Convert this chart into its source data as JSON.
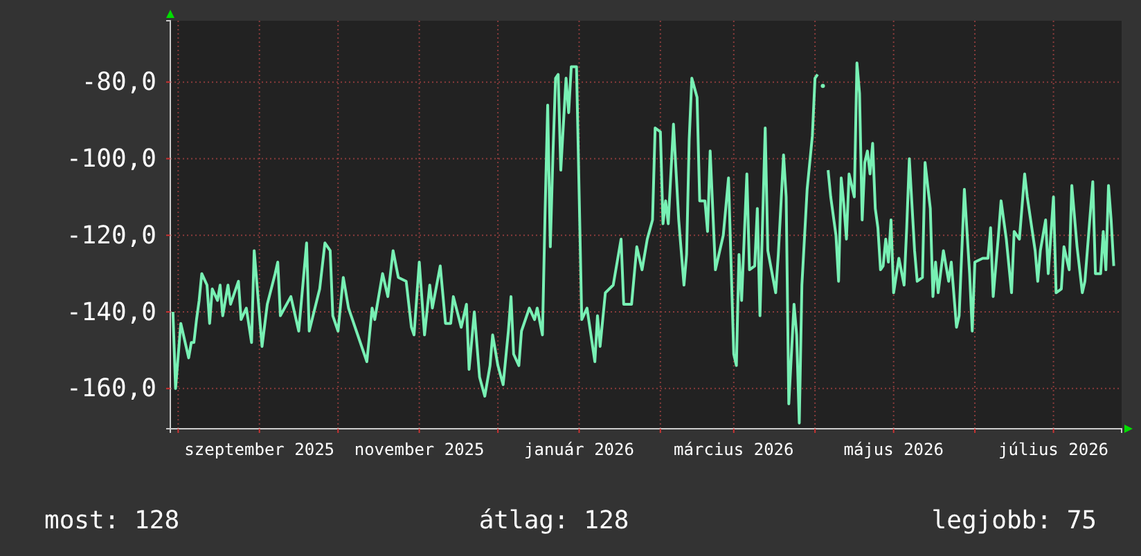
{
  "chart_data": {
    "type": "line",
    "x": [
      "2025-07-30",
      "2025-07-31",
      "2025-08-02",
      "2025-08-03",
      "2025-08-05",
      "2025-08-06",
      "2025-08-07",
      "2025-08-08",
      "2025-08-09",
      "2025-08-10",
      "2025-08-12",
      "2025-08-13",
      "2025-08-14",
      "2025-08-16",
      "2025-08-17",
      "2025-08-18",
      "2025-08-20",
      "2025-08-21",
      "2025-08-24",
      "2025-08-25",
      "2025-08-27",
      "2025-08-29",
      "2025-08-30",
      "2025-09-02",
      "2025-09-04",
      "2025-09-07",
      "2025-09-08",
      "2025-09-09",
      "2025-09-13",
      "2025-09-16",
      "2025-09-19",
      "2025-09-20",
      "2025-09-24",
      "2025-09-26",
      "2025-09-28",
      "2025-09-29",
      "2025-10-01",
      "2025-10-03",
      "2025-10-05",
      "2025-10-08",
      "2025-10-12",
      "2025-10-14",
      "2025-10-15",
      "2025-10-18",
      "2025-10-20",
      "2025-10-22",
      "2025-10-24",
      "2025-10-27",
      "2025-10-29",
      "2025-10-30",
      "2025-11-01",
      "2025-11-03",
      "2025-11-05",
      "2025-11-06",
      "2025-11-09",
      "2025-11-11",
      "2025-11-13",
      "2025-11-14",
      "2025-11-17",
      "2025-11-19",
      "2025-11-20",
      "2025-11-22",
      "2025-11-24",
      "2025-11-26",
      "2025-11-28",
      "2025-11-29",
      "2025-12-01",
      "2025-12-03",
      "2025-12-05",
      "2025-12-06",
      "2025-12-07",
      "2025-12-09",
      "2025-12-10",
      "2025-12-13",
      "2025-12-15",
      "2025-12-16",
      "2025-12-18",
      "2025-12-19",
      "2025-12-20",
      "2025-12-21",
      "2025-12-22",
      "2025-12-23",
      "2025-12-24",
      "2025-12-25",
      "2025-12-27",
      "2025-12-28",
      "2025-12-29",
      "2025-12-31",
      "2026-01-02",
      "2026-01-04",
      "2026-01-07",
      "2026-01-08",
      "2026-01-09",
      "2026-01-11",
      "2026-01-14",
      "2026-01-17",
      "2026-01-18",
      "2026-01-21",
      "2026-01-23",
      "2026-01-25",
      "2026-01-27",
      "2026-01-29",
      "2026-01-30",
      "2026-02-01",
      "2026-02-02",
      "2026-02-03",
      "2026-02-04",
      "2026-02-06",
      "2026-02-08",
      "2026-02-10",
      "2026-02-11",
      "2026-02-12",
      "2026-02-13",
      "2026-02-15",
      "2026-02-16",
      "2026-02-18",
      "2026-02-19",
      "2026-02-20",
      "2026-02-22",
      "2026-02-23",
      "2026-02-25",
      "2026-02-27",
      "2026-03-01",
      "2026-03-02",
      "2026-03-03",
      "2026-03-04",
      "2026-03-06",
      "2026-03-07",
      "2026-03-09",
      "2026-03-10",
      "2026-03-11",
      "2026-03-13",
      "2026-03-14",
      "2026-03-17",
      "2026-03-18",
      "2026-03-20",
      "2026-03-21",
      "2026-03-22",
      "2026-03-24",
      "2026-03-25",
      "2026-03-26",
      "2026-03-27",
      "2026-03-29",
      "2026-03-31",
      "2026-04-01",
      "2026-04-02",
      "2026-04-03",
      "2026-04-04",
      "2026-04-05",
      "2026-04-06",
      "2026-04-07",
      "2026-04-09",
      "2026-04-10",
      "2026-04-11",
      "2026-04-12",
      "2026-04-13",
      "2026-04-14",
      "2026-04-16",
      "2026-04-17",
      "2026-04-18",
      "2026-04-19",
      "2026-04-20",
      "2026-04-21",
      "2026-04-22",
      "2026-04-23",
      "2026-04-24",
      "2026-04-25",
      "2026-04-26",
      "2026-04-27",
      "2026-04-28",
      "2026-04-29",
      "2026-04-30",
      "2026-05-01",
      "2026-05-03",
      "2026-05-05",
      "2026-05-06",
      "2026-05-07",
      "2026-05-09",
      "2026-05-10",
      "2026-05-12",
      "2026-05-13",
      "2026-05-15",
      "2026-05-16",
      "2026-05-17",
      "2026-05-18",
      "2026-05-20",
      "2026-05-22",
      "2026-05-23",
      "2026-05-25",
      "2026-05-26",
      "2026-05-28",
      "2026-05-30",
      "2026-05-31",
      "2026-06-01",
      "2026-06-04",
      "2026-06-06",
      "2026-06-07",
      "2026-06-08",
      "2026-06-10",
      "2026-06-11",
      "2026-06-13",
      "2026-06-15",
      "2026-06-16",
      "2026-06-18",
      "2026-06-20",
      "2026-06-21",
      "2026-06-24",
      "2026-06-25",
      "2026-06-26",
      "2026-06-28",
      "2026-06-29",
      "2026-07-01",
      "2026-07-02",
      "2026-07-04",
      "2026-07-05",
      "2026-07-07",
      "2026-07-08",
      "2026-07-10",
      "2026-07-12",
      "2026-07-13",
      "2026-07-16",
      "2026-07-17",
      "2026-07-19",
      "2026-07-20",
      "2026-07-21",
      "2026-07-22",
      "2026-07-23",
      "2026-07-24"
    ],
    "series": [
      {
        "color": "#78f0b4",
        "values": [
          -140,
          -160,
          -143,
          -146,
          -152,
          -148,
          -148,
          -142,
          -137,
          -130,
          -133,
          -143,
          -134,
          -137,
          -133,
          -141,
          -133,
          -138,
          -132,
          -142,
          -139,
          -148,
          -124,
          -149,
          -138,
          -130,
          -127,
          -141,
          -136,
          -145,
          -122,
          -145,
          -134,
          -122,
          -124,
          -141,
          -145,
          -131,
          -139,
          -145,
          -153,
          -139,
          -142,
          -130,
          -136,
          -124,
          -131,
          -132,
          -144,
          -146,
          -127,
          -146,
          -133,
          -139,
          -128,
          -143,
          -143,
          -136,
          -144,
          -138,
          -155,
          -140,
          -157,
          -162,
          -154,
          -146,
          -154,
          -159,
          -145,
          -136,
          -151,
          -154,
          -145,
          -139,
          -142,
          -139,
          -146,
          -114,
          -86,
          -123,
          -99,
          -79,
          -78,
          -103,
          -79,
          -88,
          -76,
          -76,
          -142,
          -139,
          -153,
          -141,
          -149,
          -135,
          -133,
          -121,
          -138,
          -138,
          -123,
          -129,
          -121,
          -116,
          -92,
          -93,
          -117,
          -111,
          -117,
          -91,
          -116,
          -133,
          -125,
          -95,
          -79,
          -84,
          -111,
          -111,
          -119,
          -98,
          -129,
          -126,
          -120,
          -105,
          -151,
          -154,
          -125,
          -137,
          -104,
          -129,
          -128,
          -113,
          -141,
          -92,
          -124,
          -135,
          -125,
          -99,
          -110,
          -164,
          -138,
          -146,
          -169,
          -133,
          -108,
          -94,
          -79,
          -78,
          null,
          -81,
          null,
          -103,
          -110,
          -120,
          -132,
          -105,
          -112,
          -121,
          -104,
          -110,
          -75,
          -83,
          -116,
          -101,
          -98,
          -104,
          -96,
          -113,
          -118,
          -129,
          -128,
          -121,
          -127,
          -116,
          -135,
          -126,
          -133,
          -118,
          -100,
          -124,
          -132,
          -131,
          -101,
          -113,
          -136,
          -127,
          -135,
          -124,
          -132,
          -127,
          -144,
          -141,
          -108,
          -130,
          -145,
          -127,
          -126,
          -126,
          -118,
          -136,
          -120,
          -111,
          -121,
          -135,
          -119,
          -121,
          -104,
          -110,
          -124,
          -132,
          -124,
          -116,
          -130,
          -110,
          -135,
          -134,
          -123,
          -129,
          -107,
          -123,
          -135,
          -132,
          -106,
          -130,
          -130,
          -119,
          -129,
          -107,
          -116,
          -128
        ]
      }
    ],
    "xlim": [
      "2025-07-29",
      "2026-07-27"
    ],
    "xticks": [
      {
        "value": "2025-08-01",
        "label": null
      },
      {
        "value": "2025-09-01",
        "label": "szeptember 2025"
      },
      {
        "value": "2025-10-01",
        "label": null
      },
      {
        "value": "2025-11-01",
        "label": "november 2025"
      },
      {
        "value": "2025-12-01",
        "label": null
      },
      {
        "value": "2026-01-01",
        "label": "január 2026"
      },
      {
        "value": "2026-02-01",
        "label": null
      },
      {
        "value": "2026-03-01",
        "label": "március 2026"
      },
      {
        "value": "2026-04-01",
        "label": null
      },
      {
        "value": "2026-05-01",
        "label": "május 2026"
      },
      {
        "value": "2026-06-01",
        "label": null
      },
      {
        "value": "2026-07-01",
        "label": "július 2026"
      }
    ],
    "ylim": [
      -170.5,
      -64
    ],
    "yticks": [
      {
        "value": -160,
        "label": "-160,0"
      },
      {
        "value": -140,
        "label": "-140,0"
      },
      {
        "value": -120,
        "label": "-120,0"
      },
      {
        "value": -100,
        "label": "-100,0"
      },
      {
        "value": -80,
        "label": "-80,0"
      }
    ],
    "grid": true,
    "annotations": [
      "most: 128",
      "átlag: 128",
      "legjobb: 75"
    ]
  }
}
